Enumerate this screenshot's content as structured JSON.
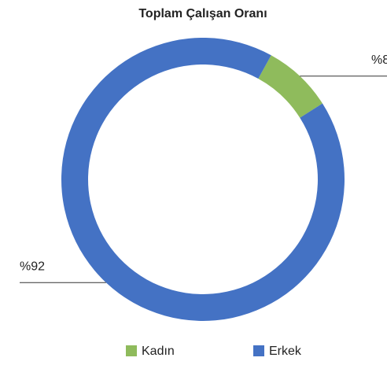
{
  "chart_data": {
    "type": "donut",
    "title": "Toplam Çalışan Oranı",
    "categories": [
      "Kadın",
      "Erkek"
    ],
    "values": [
      8,
      92
    ],
    "value_labels": [
      "%8",
      "%92"
    ],
    "colors": [
      "#8fbb5c",
      "#4472c4"
    ],
    "legend": "bottom"
  }
}
